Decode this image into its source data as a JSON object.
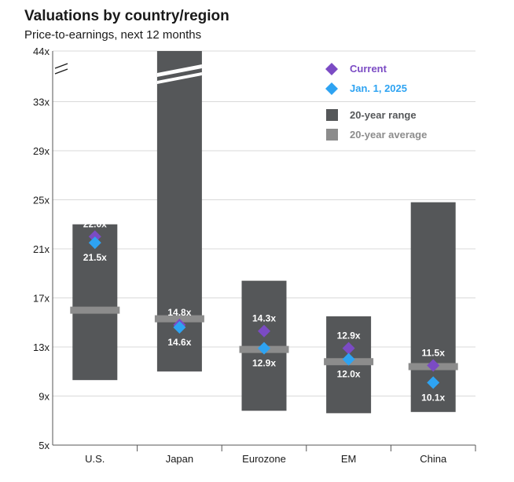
{
  "title": "Valuations by country/region",
  "subtitle": "Price-to-earnings, next 12 months",
  "colors": {
    "range": "#555759",
    "average": "#8c8c8c",
    "current": "#7b4bc4",
    "jan1": "#2ea3f2",
    "grid": "#d9d9d9",
    "axis": "#555555"
  },
  "chart_data": {
    "type": "bar",
    "title": "Valuations by country/region",
    "subtitle": "Price-to-earnings, next 12 months",
    "categories": [
      "U.S.",
      "Japan",
      "Eurozone",
      "EM",
      "China"
    ],
    "y_ticks": [
      "5x",
      "9x",
      "13x",
      "17x",
      "21x",
      "25x",
      "29x",
      "33x",
      "44x"
    ],
    "y_tick_values": [
      5,
      9,
      13,
      17,
      21,
      25,
      29,
      33,
      44
    ],
    "axis_break": "between 33x and 44x",
    "grid": true,
    "legend_position": "top-right",
    "legend": {
      "current": "Current",
      "jan1": "Jan. 1, 2025",
      "range": "20-year range",
      "average": "20-year average"
    },
    "series": [
      {
        "name": "20-year range",
        "low": [
          10.3,
          11.0,
          7.8,
          7.6,
          7.7
        ],
        "high": [
          23.0,
          44.0,
          18.4,
          15.5,
          24.8
        ]
      },
      {
        "name": "20-year average",
        "values": [
          16.0,
          15.3,
          12.8,
          11.8,
          11.4
        ]
      },
      {
        "name": "Current",
        "values": [
          22.0,
          14.8,
          14.3,
          12.9,
          11.5
        ]
      },
      {
        "name": "Jan. 1, 2025",
        "values": [
          21.5,
          14.6,
          12.9,
          12.0,
          10.1
        ]
      }
    ],
    "data_labels": {
      "current": [
        "22.0x",
        "14.8x",
        "14.3x",
        "12.9x",
        "11.5x"
      ],
      "jan1": [
        "21.5x",
        "14.6x",
        "12.9x",
        "12.0x",
        "10.1x"
      ]
    }
  }
}
